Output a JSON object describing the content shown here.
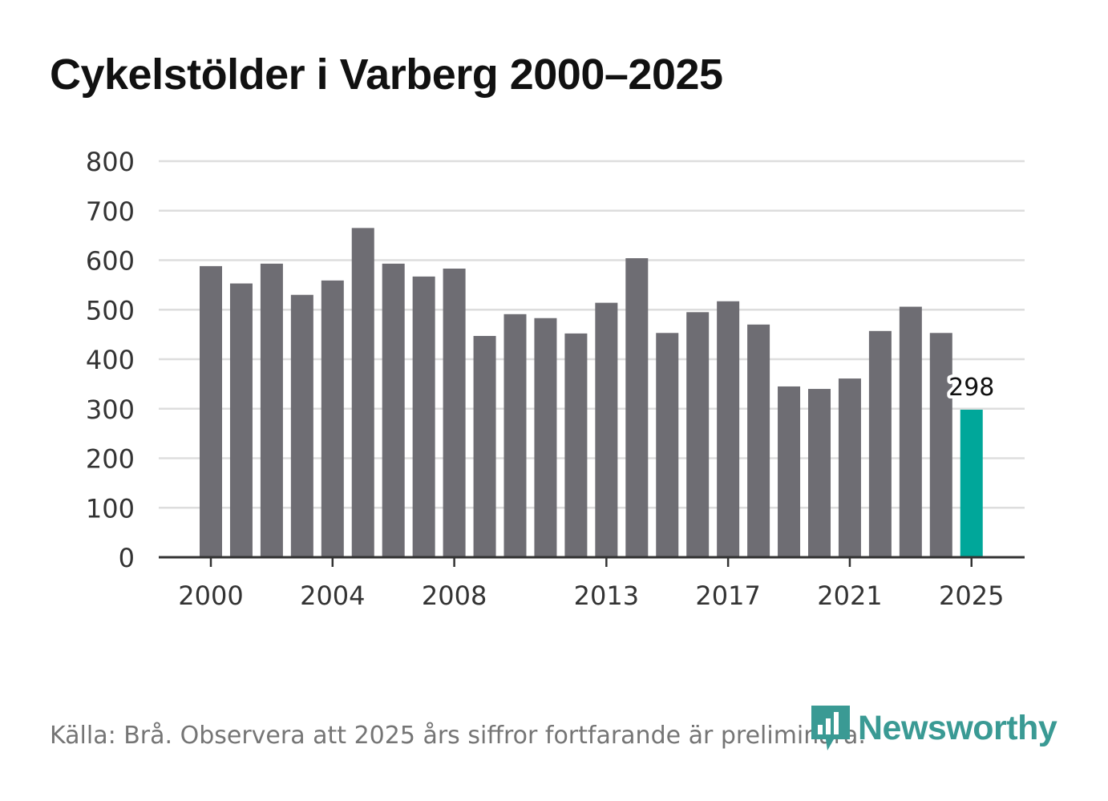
{
  "title": "Cykelstölder i Varberg 2000–2025",
  "source": "Källa: Brå. Observera att 2025 års siffror fortfarande är preliminära.",
  "logo": {
    "text": "Newsworthy",
    "icon": "newsworthy-bar-icon"
  },
  "colors": {
    "bar": "#6e6d73",
    "highlight": "#00a79a",
    "grid": "#dddddd",
    "axis": "#333333",
    "text": "#333333"
  },
  "chart_data": {
    "type": "bar",
    "title": "Cykelstölder i Varberg 2000–2025",
    "xlabel": "",
    "ylabel": "",
    "categories": [
      "2000",
      "2001",
      "2002",
      "2003",
      "2004",
      "2005",
      "2006",
      "2007",
      "2008",
      "2009",
      "2010",
      "2011",
      "2012",
      "2013",
      "2014",
      "2015",
      "2016",
      "2017",
      "2018",
      "2019",
      "2020",
      "2021",
      "2022",
      "2023",
      "2024",
      "2025"
    ],
    "values": [
      588,
      553,
      593,
      530,
      559,
      665,
      593,
      567,
      583,
      447,
      491,
      483,
      452,
      514,
      604,
      453,
      495,
      517,
      470,
      345,
      340,
      361,
      457,
      506,
      453,
      298
    ],
    "ylim": [
      0,
      800
    ],
    "yticks": [
      0,
      100,
      200,
      300,
      400,
      500,
      600,
      700,
      800
    ],
    "xtick_labels": [
      "2000",
      "2004",
      "2008",
      "2013",
      "2017",
      "2021",
      "2025"
    ],
    "highlight": {
      "category": "2025",
      "label": "298"
    },
    "grid": true
  }
}
